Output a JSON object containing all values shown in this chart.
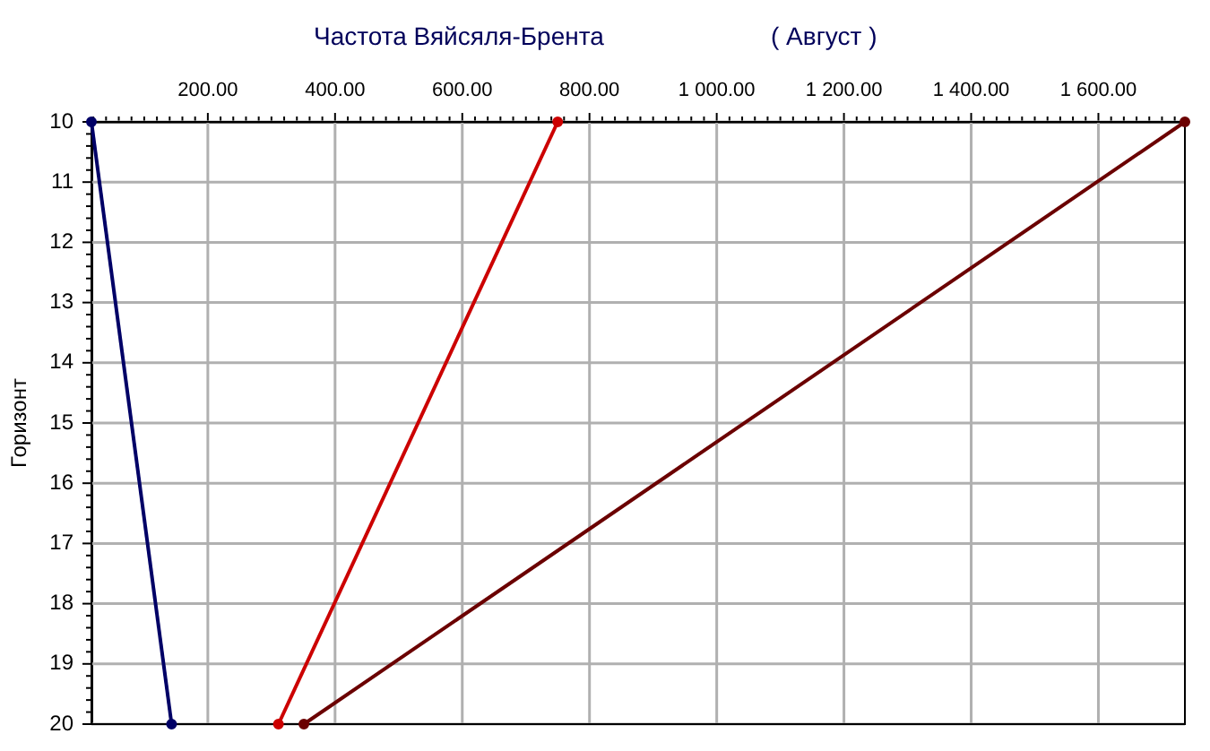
{
  "chart_data": {
    "type": "line",
    "title": "Частота Вяйсяля-Брента",
    "subtitle": "( Август )",
    "ylabel": "Горизонт",
    "series": [
      {
        "color": "#000066",
        "x": [
          17,
          143
        ],
        "values": [
          10,
          20
        ]
      },
      {
        "color": "#cc0000",
        "x": [
          750,
          311
        ],
        "values": [
          10,
          20
        ]
      },
      {
        "color": "#6b0000",
        "x": [
          1736,
          351
        ],
        "values": [
          10,
          20
        ]
      }
    ],
    "xlim": [
      17,
      1736
    ],
    "ylim": [
      20,
      10
    ],
    "xticks": [
      {
        "value": 20,
        "label": null
      },
      {
        "value": 40,
        "label": null
      },
      {
        "value": 60,
        "label": null
      },
      {
        "value": 80,
        "label": null
      },
      {
        "value": 100,
        "label": null
      },
      {
        "value": 120,
        "label": null
      },
      {
        "value": 140,
        "label": null
      },
      {
        "value": 160,
        "label": null
      },
      {
        "value": 180,
        "label": null
      },
      {
        "value": 200,
        "label": "200.00"
      },
      {
        "value": 220,
        "label": null
      },
      {
        "value": 240,
        "label": null
      },
      {
        "value": 260,
        "label": null
      },
      {
        "value": 280,
        "label": null
      },
      {
        "value": 300,
        "label": null
      },
      {
        "value": 320,
        "label": null
      },
      {
        "value": 340,
        "label": null
      },
      {
        "value": 360,
        "label": null
      },
      {
        "value": 380,
        "label": null
      },
      {
        "value": 400,
        "label": "400.00"
      },
      {
        "value": 420,
        "label": null
      },
      {
        "value": 440,
        "label": null
      },
      {
        "value": 460,
        "label": null
      },
      {
        "value": 480,
        "label": null
      },
      {
        "value": 500,
        "label": null
      },
      {
        "value": 520,
        "label": null
      },
      {
        "value": 540,
        "label": null
      },
      {
        "value": 560,
        "label": null
      },
      {
        "value": 580,
        "label": null
      },
      {
        "value": 600,
        "label": "600.00"
      },
      {
        "value": 620,
        "label": null
      },
      {
        "value": 640,
        "label": null
      },
      {
        "value": 660,
        "label": null
      },
      {
        "value": 680,
        "label": null
      },
      {
        "value": 700,
        "label": null
      },
      {
        "value": 720,
        "label": null
      },
      {
        "value": 740,
        "label": null
      },
      {
        "value": 760,
        "label": null
      },
      {
        "value": 780,
        "label": null
      },
      {
        "value": 800,
        "label": "800.00"
      },
      {
        "value": 820,
        "label": null
      },
      {
        "value": 840,
        "label": null
      },
      {
        "value": 860,
        "label": null
      },
      {
        "value": 880,
        "label": null
      },
      {
        "value": 900,
        "label": null
      },
      {
        "value": 920,
        "label": null
      },
      {
        "value": 940,
        "label": null
      },
      {
        "value": 960,
        "label": null
      },
      {
        "value": 980,
        "label": null
      },
      {
        "value": 1000,
        "label": "1 000.00"
      },
      {
        "value": 1020,
        "label": null
      },
      {
        "value": 1040,
        "label": null
      },
      {
        "value": 1060,
        "label": null
      },
      {
        "value": 1080,
        "label": null
      },
      {
        "value": 1100,
        "label": null
      },
      {
        "value": 1120,
        "label": null
      },
      {
        "value": 1140,
        "label": null
      },
      {
        "value": 1160,
        "label": null
      },
      {
        "value": 1180,
        "label": null
      },
      {
        "value": 1200,
        "label": "1 200.00"
      },
      {
        "value": 1220,
        "label": null
      },
      {
        "value": 1240,
        "label": null
      },
      {
        "value": 1260,
        "label": null
      },
      {
        "value": 1280,
        "label": null
      },
      {
        "value": 1300,
        "label": null
      },
      {
        "value": 1320,
        "label": null
      },
      {
        "value": 1340,
        "label": null
      },
      {
        "value": 1360,
        "label": null
      },
      {
        "value": 1380,
        "label": null
      },
      {
        "value": 1400,
        "label": "1 400.00"
      },
      {
        "value": 1420,
        "label": null
      },
      {
        "value": 1440,
        "label": null
      },
      {
        "value": 1460,
        "label": null
      },
      {
        "value": 1480,
        "label": null
      },
      {
        "value": 1500,
        "label": null
      },
      {
        "value": 1520,
        "label": null
      },
      {
        "value": 1540,
        "label": null
      },
      {
        "value": 1560,
        "label": null
      },
      {
        "value": 1580,
        "label": null
      },
      {
        "value": 1600,
        "label": "1 600.00"
      },
      {
        "value": 1620,
        "label": null
      },
      {
        "value": 1640,
        "label": null
      },
      {
        "value": 1660,
        "label": null
      },
      {
        "value": 1680,
        "label": null
      },
      {
        "value": 1700,
        "label": null
      },
      {
        "value": 1720,
        "label": null
      }
    ],
    "yticks": [
      10,
      {
        "value": 10.2,
        "label": null
      },
      {
        "value": 10.4,
        "label": null
      },
      {
        "value": 10.6,
        "label": null
      },
      {
        "value": 10.8,
        "label": null
      },
      11,
      {
        "value": 11.2,
        "label": null
      },
      {
        "value": 11.4,
        "label": null
      },
      {
        "value": 11.6,
        "label": null
      },
      {
        "value": 11.8,
        "label": null
      },
      12,
      {
        "value": 12.2,
        "label": null
      },
      {
        "value": 12.4,
        "label": null
      },
      {
        "value": 12.6,
        "label": null
      },
      {
        "value": 12.8,
        "label": null
      },
      13,
      {
        "value": 13.2,
        "label": null
      },
      {
        "value": 13.4,
        "label": null
      },
      {
        "value": 13.6,
        "label": null
      },
      {
        "value": 13.8,
        "label": null
      },
      14,
      {
        "value": 14.2,
        "label": null
      },
      {
        "value": 14.4,
        "label": null
      },
      {
        "value": 14.6,
        "label": null
      },
      {
        "value": 14.8,
        "label": null
      },
      15,
      {
        "value": 15.2,
        "label": null
      },
      {
        "value": 15.4,
        "label": null
      },
      {
        "value": 15.6,
        "label": null
      },
      {
        "value": 15.8,
        "label": null
      },
      16,
      {
        "value": 16.2,
        "label": null
      },
      {
        "value": 16.4,
        "label": null
      },
      {
        "value": 16.6,
        "label": null
      },
      {
        "value": 16.8,
        "label": null
      },
      17,
      {
        "value": 17.2,
        "label": null
      },
      {
        "value": 17.4,
        "label": null
      },
      {
        "value": 17.6,
        "label": null
      },
      {
        "value": 17.8,
        "label": null
      },
      18,
      {
        "value": 18.2,
        "label": null
      },
      {
        "value": 18.4,
        "label": null
      },
      {
        "value": 18.6,
        "label": null
      },
      {
        "value": 18.8,
        "label": null
      },
      19,
      {
        "value": 19.2,
        "label": null
      },
      {
        "value": 19.4,
        "label": null
      },
      {
        "value": 19.6,
        "label": null
      },
      {
        "value": 19.8,
        "label": null
      },
      20
    ],
    "grid": true,
    "legend": false,
    "marker": "circle",
    "line_style": "solid"
  }
}
